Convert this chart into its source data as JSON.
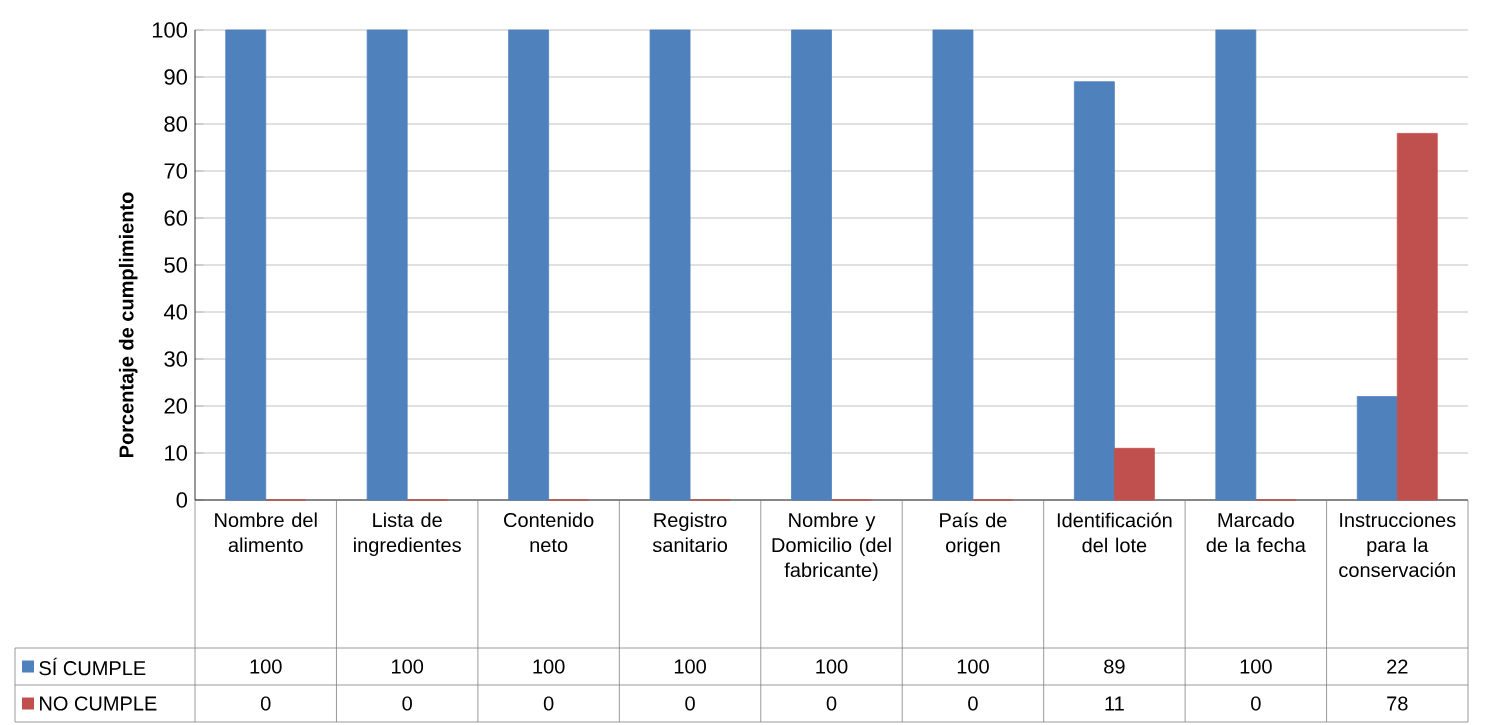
{
  "chart_data": {
    "type": "bar",
    "ylabel": "Porcentaje de cumplimiento",
    "categories": [
      "Nombre del alimento",
      "Lista de ingredientes",
      "Contenido neto",
      "Registro sanitario",
      "Nombre y Domicilio (del fabricante)",
      "País de origen",
      "Identificación del lote",
      "Marcado de la fecha",
      "Instrucciones para la conservación"
    ],
    "series": [
      {
        "name": "SÍ CUMPLE",
        "color": "#4f81bd",
        "values": [
          100,
          100,
          100,
          100,
          100,
          100,
          89,
          100,
          22
        ]
      },
      {
        "name": "NO CUMPLE",
        "color": "#c0504d",
        "values": [
          0,
          0,
          0,
          0,
          0,
          0,
          11,
          0,
          78
        ]
      }
    ],
    "ylim": [
      0,
      100
    ],
    "yticks": [
      0,
      10,
      20,
      30,
      40,
      50,
      60,
      70,
      80,
      90,
      100
    ],
    "grid": "y",
    "legend": "bottom",
    "data_labels": true
  }
}
